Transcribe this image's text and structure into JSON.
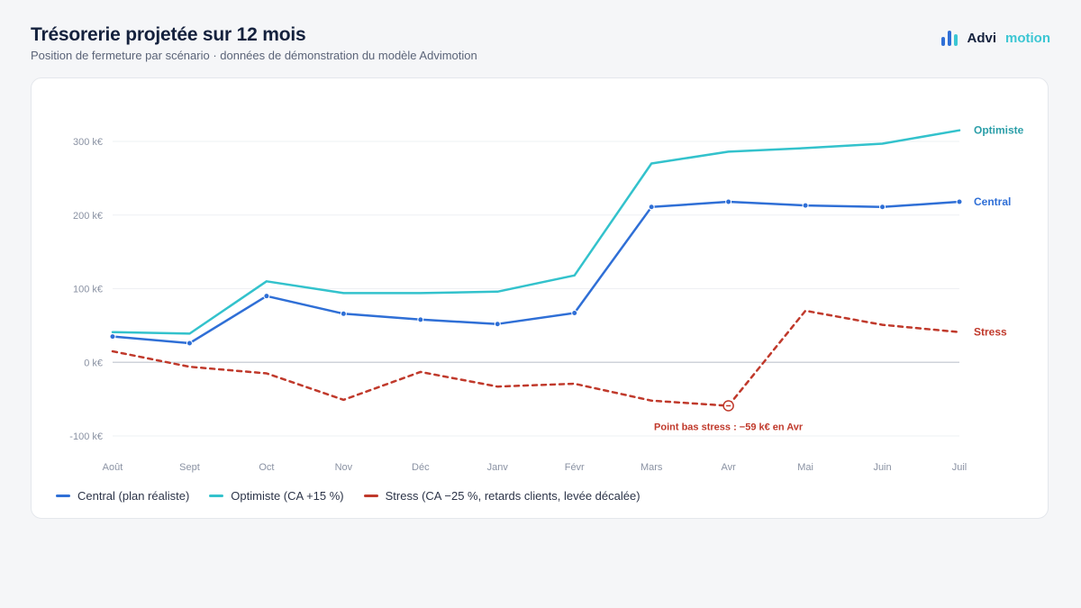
{
  "header": {
    "title": "Trésorerie projetée sur 12 mois",
    "subtitle": "Position de fermeture par scénario · données de démonstration du modèle Advimotion"
  },
  "brand": {
    "part1": "Advi",
    "part2": "motion",
    "icon": "bar-chart-icon"
  },
  "colors": {
    "central": "#2f6fd6",
    "optimiste": "#33c2cc",
    "stress": "#c0392b",
    "text": "#14213d"
  },
  "chart_data": {
    "type": "line",
    "categories": [
      "Août",
      "Sept",
      "Oct",
      "Nov",
      "Déc",
      "Janv",
      "Févr",
      "Mars",
      "Avr",
      "Mai",
      "Juin",
      "Juil"
    ],
    "ylim": [
      -100,
      300
    ],
    "yticks": [
      -100,
      0,
      100,
      200,
      300
    ],
    "ytick_labels": [
      "-100 k€",
      "0 k€",
      "100 k€",
      "200 k€",
      "300 k€"
    ],
    "grid": true,
    "legend_position": "bottom-left",
    "series": [
      {
        "key": "central",
        "name": "Central (plan réaliste)",
        "end_label": "Central",
        "style": "solid",
        "markers": true,
        "values": [
          35,
          26,
          90,
          66,
          58,
          52,
          67,
          211,
          218,
          213,
          211,
          218
        ]
      },
      {
        "key": "optimiste",
        "name": "Optimiste (CA +15 %)",
        "end_label": "Optimiste",
        "style": "solid",
        "markers": false,
        "values": [
          41,
          39,
          110,
          94,
          94,
          96,
          118,
          270,
          286,
          291,
          297,
          315
        ]
      },
      {
        "key": "stress",
        "name": "Stress (CA −25 %, retards clients, levée décalée)",
        "end_label": "Stress",
        "style": "dashed",
        "markers": false,
        "values": [
          15,
          -6,
          -15,
          -51,
          -13,
          -33,
          -29,
          -52,
          -59,
          70,
          51,
          41
        ]
      }
    ],
    "annotation": {
      "series": "stress",
      "index": 8,
      "text": "Point bas stress : −59 k€ en Avr"
    }
  }
}
